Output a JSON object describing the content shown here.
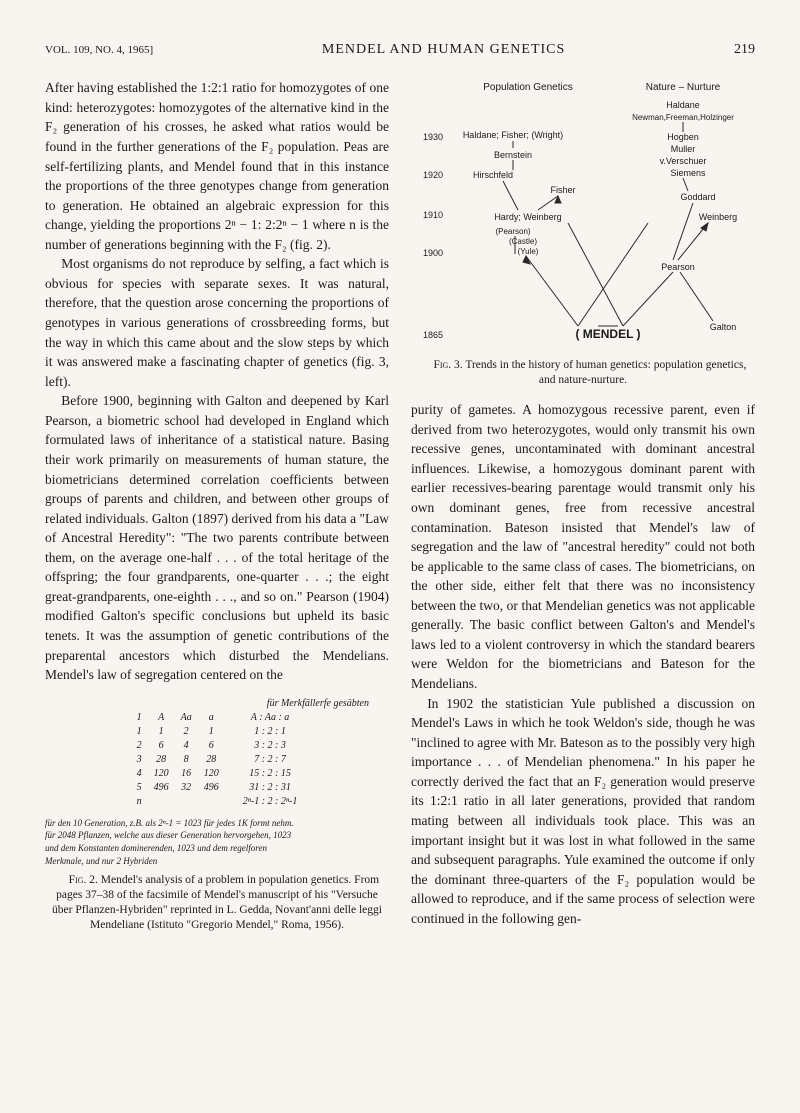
{
  "header": {
    "vol": "VOL. 109, NO. 4, 1965]",
    "title": "MENDEL AND HUMAN GENETICS",
    "page": "219"
  },
  "col1": {
    "p1": "After having established the 1:2:1 ratio for homozygotes of one kind: heterozygotes: homozygotes of the alternative kind in the F₂ generation of his crosses, he asked what ratios would be found in the further generations of the F₂ population. Peas are self-fertilizing plants, and Mendel found that in this instance the proportions of the three genotypes change from generation to generation. He obtained an algebraic expression for this change, yielding the proportions 2ⁿ − 1: 2:2ⁿ − 1 where n is the number of generations beginning with the F₂ (fig. 2).",
    "p2": "Most organisms do not reproduce by selfing, a fact which is obvious for species with separate sexes. It was natural, therefore, that the question arose concerning the proportions of genotypes in various generations of crossbreeding forms, but the way in which this came about and the slow steps by which it was answered make a fascinating chapter of genetics (fig. 3, left).",
    "p3": "Before 1900, beginning with Galton and deepened by Karl Pearson, a biometric school had developed in England which formulated laws of inheritance of a statistical nature. Basing their work primarily on measurements of human stature, the biometricians determined correlation coefficients between groups of parents and children, and between other groups of related individuals. Galton (1897) derived from his data a \"Law of Ancestral Heredity\": \"The two parents contribute between them, on the average one-half . . . of the total heritage of the offspring; the four grandparents, one-quarter . . .; the eight great-grandparents, one-eighth . . ., and so on.\" Pearson (1904) modified Galton's specific conclusions but upheld its basic tenets. It was the assumption of genetic contributions of the preparental ancestors which disturbed the Mendelians. Mendel's law of segregation centered on the"
  },
  "fig2": {
    "script_header": "für Merkfällerfe gesäbten",
    "rows": [
      [
        "1",
        "A",
        "Aa",
        "a",
        "",
        "A : Aa : a"
      ],
      [
        "1",
        "1",
        "2",
        "1",
        "",
        "1 : 2 : 1"
      ],
      [
        "2",
        "6",
        "4",
        "6",
        "",
        "3 : 2 : 3"
      ],
      [
        "3",
        "28",
        "8",
        "28",
        "",
        "7 : 2 : 7"
      ],
      [
        "4",
        "120",
        "16",
        "120",
        "",
        "15 : 2 : 15"
      ],
      [
        "5",
        "496",
        "32",
        "496",
        "",
        "31 : 2 : 31"
      ],
      [
        "n",
        "",
        "",
        "",
        "",
        "2ⁿ-1 : 2 : 2ⁿ-1"
      ]
    ],
    "script_lines": [
      "für den 10 Generation, z.B. als 2ⁿ-1 = 1023 für jedes 1K formt nehm.",
      "für 2048 Pflanzen, welche aus dieser Generation hervorgehen, 1023",
      "und dem Konstanten dominerenden, 1023 und dem regelforen",
      "Merkmale, und nur 2 Hybriden"
    ],
    "caption_label": "Fig. 2.",
    "caption": "Mendel's analysis of a problem in population genetics. From pages 37–38 of the facsimile of Mendel's manuscript of his \"Versuche über Pflanzen-Hybriden\" reprinted in L. Gedda, Novant'anni delle leggi Mendeliane (Istituto \"Gregorio Mendel,\" Roma, 1956)."
  },
  "fig3": {
    "headers": {
      "left": "Population Genetics",
      "right": "Nature – Nurture"
    },
    "years": [
      "1930",
      "1920",
      "1910",
      "1900",
      "1865"
    ],
    "labels": {
      "haldane_top": "Haldane",
      "newman": "Newman,Freeman,Holzinger",
      "haldane": "Haldane; Fisher; (Wright)",
      "bernstein": "Bernstein",
      "hirschfeld": "Hirschfeld",
      "fisher": "Fisher",
      "hardy": "Hardy; Weinberg",
      "pearson_paren": "(Pearson)",
      "castle": "(Castle)",
      "yule": "(Yule)",
      "hogben": "Hogben",
      "muller": "Muller",
      "verschuer": "v.Verschuer",
      "siemens": "Siemens",
      "goddard": "Goddard",
      "weinberg": "Weinberg",
      "pearson": "Pearson",
      "galton": "Galton",
      "mendel": "( MENDEL )"
    },
    "caption_label": "Fig. 3.",
    "caption": "Trends in the history of human genetics: population genetics, and nature-nurture.",
    "colors": {
      "line": "#2a2a2a",
      "text": "#1a1a1a"
    }
  },
  "col2": {
    "p1": "purity of gametes. A homozygous recessive parent, even if derived from two heterozygotes, would only transmit his own recessive genes, uncontaminated with dominant ancestral influences. Likewise, a homozygous dominant parent with earlier recessives-bearing parentage would transmit only his own dominant genes, free from recessive ancestral contamination. Bateson insisted that Mendel's law of segregation and the law of \"ancestral heredity\" could not both be applicable to the same class of cases. The biometricians, on the other side, either felt that there was no inconsistency between the two, or that Mendelian genetics was not applicable generally. The basic conflict between Galton's and Mendel's laws led to a violent controversy in which the standard bearers were Weldon for the biometricians and Bateson for the Mendelians.",
    "p2": "In 1902 the statistician Yule published a discussion on Mendel's Laws in which he took Weldon's side, though he was \"inclined to agree with Mr. Bateson as to the possibly very high importance . . . of Mendelian phenomena.\" In his paper he correctly derived the fact that an F₂ generation would preserve its 1:2:1 ratio in all later generations, provided that random mating between all individuals took place. This was an important insight but it was lost in what followed in the same and subsequent paragraphs. Yule examined the outcome if only the dominant three-quarters of the F₂ population would be allowed to reproduce, and if the same process of selection were continued in the following gen-"
  }
}
